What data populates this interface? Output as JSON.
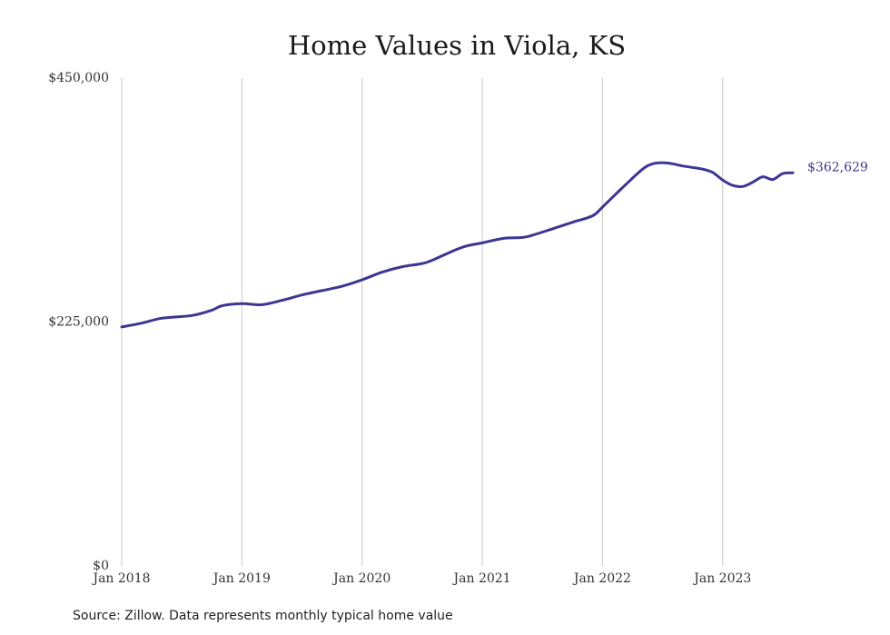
{
  "colors": {
    "line": "#3d3693",
    "grid": "#c8c8c8",
    "text": "#333333"
  },
  "source": "Source: Zillow. Data represents monthly typical home value",
  "chart_data": {
    "type": "line",
    "title": "Home Values in Viola, KS",
    "xlabel": "",
    "ylabel": "",
    "ylim": [
      0,
      450000
    ],
    "xlim": [
      "2018-01",
      "2023-08"
    ],
    "yticks": [
      {
        "value": 0,
        "label": "$0"
      },
      {
        "value": 225000,
        "label": "$225,000"
      },
      {
        "value": 450000,
        "label": "$450,000"
      }
    ],
    "xticks": [
      {
        "value": "2018-01",
        "label": "Jan 2018"
      },
      {
        "value": "2019-01",
        "label": "Jan 2019"
      },
      {
        "value": "2020-01",
        "label": "Jan 2020"
      },
      {
        "value": "2021-01",
        "label": "Jan 2021"
      },
      {
        "value": "2022-01",
        "label": "Jan 2022"
      },
      {
        "value": "2023-01",
        "label": "Jan 2023"
      }
    ],
    "grid": "vertical",
    "end_label": "$362,629",
    "series": [
      {
        "points": [
          [
            "2018-01",
            220500
          ],
          [
            "2018-03",
            224000
          ],
          [
            "2018-05",
            228500
          ],
          [
            "2018-08",
            231000
          ],
          [
            "2018-10",
            236000
          ],
          [
            "2018-11",
            240000
          ],
          [
            "2019-01",
            242000
          ],
          [
            "2019-03",
            241000
          ],
          [
            "2019-05",
            245000
          ],
          [
            "2019-07",
            250000
          ],
          [
            "2019-09",
            254000
          ],
          [
            "2019-11",
            258000
          ],
          [
            "2020-01",
            264000
          ],
          [
            "2020-03",
            271000
          ],
          [
            "2020-05",
            276000
          ],
          [
            "2020-07",
            279000
          ],
          [
            "2020-08",
            282000
          ],
          [
            "2020-11",
            294000
          ],
          [
            "2021-01",
            298000
          ],
          [
            "2021-03",
            302000
          ],
          [
            "2021-05",
            303000
          ],
          [
            "2021-06",
            305000
          ],
          [
            "2021-08",
            311000
          ],
          [
            "2021-10",
            317000
          ],
          [
            "2021-12",
            323000
          ],
          [
            "2022-01",
            331000
          ],
          [
            "2022-03",
            349000
          ],
          [
            "2022-05",
            366000
          ],
          [
            "2022-06",
            371000
          ],
          [
            "2022-07",
            372000
          ],
          [
            "2022-08",
            371000
          ],
          [
            "2022-09",
            369000
          ],
          [
            "2022-11",
            366000
          ],
          [
            "2022-12",
            363000
          ],
          [
            "2023-01",
            356000
          ],
          [
            "2023-02",
            351000
          ],
          [
            "2023-03",
            350000
          ],
          [
            "2023-04",
            354000
          ],
          [
            "2023-05",
            359000
          ],
          [
            "2023-06",
            356500
          ],
          [
            "2023-07",
            362000
          ],
          [
            "2023-08",
            362629
          ]
        ]
      }
    ]
  }
}
